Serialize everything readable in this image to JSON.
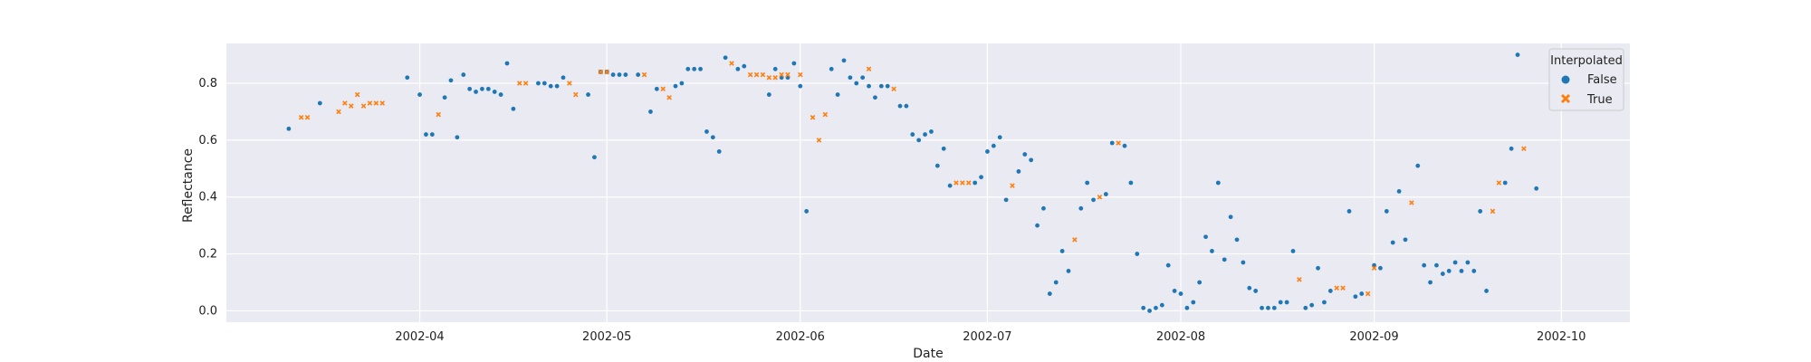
{
  "chart_data": {
    "type": "scatter",
    "title": "",
    "xlabel": "Date",
    "ylabel": "Reflectance",
    "xlim": [
      "2002-03-01",
      "2002-10-12"
    ],
    "ylim": [
      -0.04,
      0.94
    ],
    "x_ticks": [
      "2002-04",
      "2002-05",
      "2002-06",
      "2002-07",
      "2002-08",
      "2002-09",
      "2002-10"
    ],
    "y_ticks": [
      "0.0",
      "0.2",
      "0.4",
      "0.6",
      "0.8"
    ],
    "grid": true,
    "legend": {
      "title": "Interpolated",
      "placement": "top-right"
    },
    "series": [
      {
        "name": "False",
        "marker": "circle",
        "color": "#1f77b4",
        "points": [
          [
            "2002-03-11",
            0.64
          ],
          [
            "2002-03-16",
            0.73
          ],
          [
            "2002-03-30",
            0.82
          ],
          [
            "2002-04-01",
            0.76
          ],
          [
            "2002-04-02",
            0.62
          ],
          [
            "2002-04-03",
            0.62
          ],
          [
            "2002-04-05",
            0.75
          ],
          [
            "2002-04-06",
            0.81
          ],
          [
            "2002-04-07",
            0.61
          ],
          [
            "2002-04-08",
            0.83
          ],
          [
            "2002-04-09",
            0.78
          ],
          [
            "2002-04-10",
            0.77
          ],
          [
            "2002-04-11",
            0.78
          ],
          [
            "2002-04-12",
            0.78
          ],
          [
            "2002-04-13",
            0.77
          ],
          [
            "2002-04-14",
            0.76
          ],
          [
            "2002-04-15",
            0.87
          ],
          [
            "2002-04-16",
            0.71
          ],
          [
            "2002-04-20",
            0.8
          ],
          [
            "2002-04-21",
            0.8
          ],
          [
            "2002-04-22",
            0.79
          ],
          [
            "2002-04-23",
            0.79
          ],
          [
            "2002-04-24",
            0.82
          ],
          [
            "2002-04-28",
            0.76
          ],
          [
            "2002-04-29",
            0.54
          ],
          [
            "2002-04-30",
            0.84
          ],
          [
            "2002-05-01",
            0.84
          ],
          [
            "2002-05-02",
            0.83
          ],
          [
            "2002-05-03",
            0.83
          ],
          [
            "2002-05-04",
            0.83
          ],
          [
            "2002-05-06",
            0.83
          ],
          [
            "2002-05-08",
            0.7
          ],
          [
            "2002-05-09",
            0.78
          ],
          [
            "2002-05-12",
            0.79
          ],
          [
            "2002-05-13",
            0.8
          ],
          [
            "2002-05-14",
            0.85
          ],
          [
            "2002-05-15",
            0.85
          ],
          [
            "2002-05-16",
            0.85
          ],
          [
            "2002-05-17",
            0.63
          ],
          [
            "2002-05-18",
            0.61
          ],
          [
            "2002-05-19",
            0.56
          ],
          [
            "2002-05-20",
            0.89
          ],
          [
            "2002-05-22",
            0.85
          ],
          [
            "2002-05-23",
            0.86
          ],
          [
            "2002-05-27",
            0.76
          ],
          [
            "2002-05-28",
            0.85
          ],
          [
            "2002-05-29",
            0.82
          ],
          [
            "2002-05-30",
            0.82
          ],
          [
            "2002-05-31",
            0.87
          ],
          [
            "2002-06-01",
            0.79
          ],
          [
            "2002-06-02",
            0.35
          ],
          [
            "2002-06-06",
            0.85
          ],
          [
            "2002-06-07",
            0.76
          ],
          [
            "2002-06-08",
            0.88
          ],
          [
            "2002-06-09",
            0.82
          ],
          [
            "2002-06-10",
            0.8
          ],
          [
            "2002-06-11",
            0.82
          ],
          [
            "2002-06-12",
            0.79
          ],
          [
            "2002-06-13",
            0.75
          ],
          [
            "2002-06-14",
            0.79
          ],
          [
            "2002-06-15",
            0.79
          ],
          [
            "2002-06-17",
            0.72
          ],
          [
            "2002-06-18",
            0.72
          ],
          [
            "2002-06-19",
            0.62
          ],
          [
            "2002-06-20",
            0.6
          ],
          [
            "2002-06-21",
            0.62
          ],
          [
            "2002-06-22",
            0.63
          ],
          [
            "2002-06-23",
            0.51
          ],
          [
            "2002-06-24",
            0.57
          ],
          [
            "2002-06-25",
            0.44
          ],
          [
            "2002-06-29",
            0.45
          ],
          [
            "2002-06-30",
            0.47
          ],
          [
            "2002-07-01",
            0.56
          ],
          [
            "2002-07-02",
            0.58
          ],
          [
            "2002-07-03",
            0.61
          ],
          [
            "2002-07-04",
            0.39
          ],
          [
            "2002-07-06",
            0.49
          ],
          [
            "2002-07-07",
            0.55
          ],
          [
            "2002-07-08",
            0.53
          ],
          [
            "2002-07-09",
            0.3
          ],
          [
            "2002-07-10",
            0.36
          ],
          [
            "2002-07-11",
            0.06
          ],
          [
            "2002-07-12",
            0.1
          ],
          [
            "2002-07-13",
            0.21
          ],
          [
            "2002-07-14",
            0.14
          ],
          [
            "2002-07-16",
            0.36
          ],
          [
            "2002-07-17",
            0.45
          ],
          [
            "2002-07-18",
            0.39
          ],
          [
            "2002-07-20",
            0.41
          ],
          [
            "2002-07-21",
            0.59
          ],
          [
            "2002-07-23",
            0.58
          ],
          [
            "2002-07-24",
            0.45
          ],
          [
            "2002-07-25",
            0.2
          ],
          [
            "2002-07-26",
            0.01
          ],
          [
            "2002-07-27",
            0.0
          ],
          [
            "2002-07-28",
            0.01
          ],
          [
            "2002-07-29",
            0.02
          ],
          [
            "2002-07-30",
            0.16
          ],
          [
            "2002-07-31",
            0.07
          ],
          [
            "2002-08-01",
            0.06
          ],
          [
            "2002-08-02",
            0.01
          ],
          [
            "2002-08-03",
            0.03
          ],
          [
            "2002-08-04",
            0.1
          ],
          [
            "2002-08-05",
            0.26
          ],
          [
            "2002-08-06",
            0.21
          ],
          [
            "2002-08-07",
            0.45
          ],
          [
            "2002-08-08",
            0.18
          ],
          [
            "2002-08-09",
            0.33
          ],
          [
            "2002-08-10",
            0.25
          ],
          [
            "2002-08-11",
            0.17
          ],
          [
            "2002-08-12",
            0.08
          ],
          [
            "2002-08-13",
            0.07
          ],
          [
            "2002-08-14",
            0.01
          ],
          [
            "2002-08-15",
            0.01
          ],
          [
            "2002-08-16",
            0.01
          ],
          [
            "2002-08-17",
            0.03
          ],
          [
            "2002-08-18",
            0.03
          ],
          [
            "2002-08-19",
            0.21
          ],
          [
            "2002-08-21",
            0.01
          ],
          [
            "2002-08-22",
            0.02
          ],
          [
            "2002-08-23",
            0.15
          ],
          [
            "2002-08-24",
            0.03
          ],
          [
            "2002-08-25",
            0.07
          ],
          [
            "2002-08-28",
            0.35
          ],
          [
            "2002-08-29",
            0.05
          ],
          [
            "2002-08-30",
            0.06
          ],
          [
            "2002-09-01",
            0.16
          ],
          [
            "2002-09-02",
            0.15
          ],
          [
            "2002-09-03",
            0.35
          ],
          [
            "2002-09-04",
            0.24
          ],
          [
            "2002-09-05",
            0.42
          ],
          [
            "2002-09-06",
            0.25
          ],
          [
            "2002-09-08",
            0.51
          ],
          [
            "2002-09-09",
            0.16
          ],
          [
            "2002-09-10",
            0.1
          ],
          [
            "2002-09-11",
            0.16
          ],
          [
            "2002-09-12",
            0.13
          ],
          [
            "2002-09-13",
            0.14
          ],
          [
            "2002-09-14",
            0.17
          ],
          [
            "2002-09-15",
            0.14
          ],
          [
            "2002-09-16",
            0.17
          ],
          [
            "2002-09-17",
            0.14
          ],
          [
            "2002-09-18",
            0.35
          ],
          [
            "2002-09-19",
            0.07
          ],
          [
            "2002-09-22",
            0.45
          ],
          [
            "2002-09-23",
            0.57
          ],
          [
            "2002-09-24",
            0.9
          ],
          [
            "2002-09-27",
            0.43
          ]
        ]
      },
      {
        "name": "True",
        "marker": "x",
        "color": "#ff7f0e",
        "points": [
          [
            "2002-03-13",
            0.68
          ],
          [
            "2002-03-14",
            0.68
          ],
          [
            "2002-03-19",
            0.7
          ],
          [
            "2002-03-20",
            0.73
          ],
          [
            "2002-03-21",
            0.72
          ],
          [
            "2002-03-22",
            0.76
          ],
          [
            "2002-03-23",
            0.72
          ],
          [
            "2002-03-24",
            0.73
          ],
          [
            "2002-03-25",
            0.73
          ],
          [
            "2002-03-26",
            0.73
          ],
          [
            "2002-04-04",
            0.69
          ],
          [
            "2002-04-17",
            0.8
          ],
          [
            "2002-04-18",
            0.8
          ],
          [
            "2002-04-25",
            0.8
          ],
          [
            "2002-04-26",
            0.76
          ],
          [
            "2002-04-30",
            0.84
          ],
          [
            "2002-05-01",
            0.84
          ],
          [
            "2002-05-07",
            0.83
          ],
          [
            "2002-05-10",
            0.78
          ],
          [
            "2002-05-11",
            0.75
          ],
          [
            "2002-05-21",
            0.87
          ],
          [
            "2002-05-24",
            0.83
          ],
          [
            "2002-05-25",
            0.83
          ],
          [
            "2002-05-26",
            0.83
          ],
          [
            "2002-05-27",
            0.82
          ],
          [
            "2002-05-28",
            0.82
          ],
          [
            "2002-05-29",
            0.83
          ],
          [
            "2002-05-30",
            0.83
          ],
          [
            "2002-06-01",
            0.83
          ],
          [
            "2002-06-03",
            0.68
          ],
          [
            "2002-06-04",
            0.6
          ],
          [
            "2002-06-05",
            0.69
          ],
          [
            "2002-06-12",
            0.85
          ],
          [
            "2002-06-16",
            0.78
          ],
          [
            "2002-06-26",
            0.45
          ],
          [
            "2002-06-27",
            0.45
          ],
          [
            "2002-06-28",
            0.45
          ],
          [
            "2002-07-05",
            0.44
          ],
          [
            "2002-07-15",
            0.25
          ],
          [
            "2002-07-19",
            0.4
          ],
          [
            "2002-07-22",
            0.59
          ],
          [
            "2002-08-20",
            0.11
          ],
          [
            "2002-08-26",
            0.08
          ],
          [
            "2002-08-27",
            0.08
          ],
          [
            "2002-08-31",
            0.06
          ],
          [
            "2002-09-01",
            0.15
          ],
          [
            "2002-09-07",
            0.38
          ],
          [
            "2002-09-20",
            0.35
          ],
          [
            "2002-09-21",
            0.45
          ],
          [
            "2002-09-25",
            0.57
          ]
        ]
      }
    ]
  }
}
